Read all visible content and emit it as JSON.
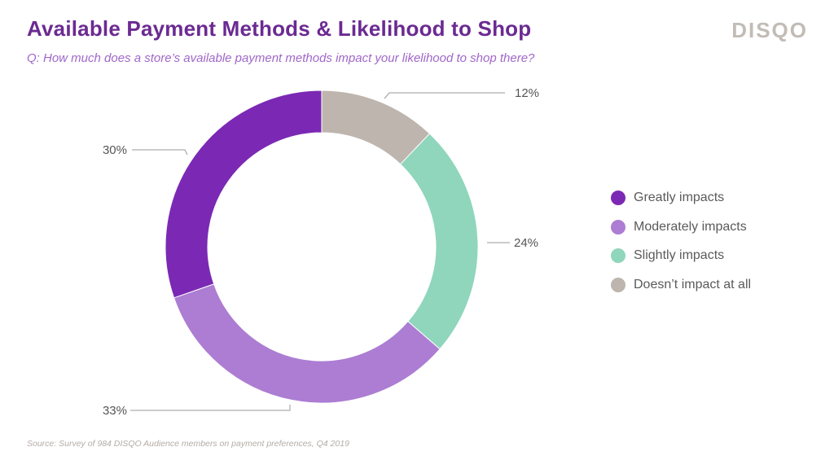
{
  "header": {
    "title": "Available Payment Methods & Likelihood to Shop",
    "subtitle": "Q: How much does a store’s available payment methods impact your likelihood to shop there?",
    "logo": "DISQO"
  },
  "footer": {
    "source": "Source: Survey of 984 DISQO Audience members on payment preferences, Q4 2019"
  },
  "colors": {
    "title": "#6b2a92",
    "subtitle": "#a067c9",
    "logo": "#c2bcb6"
  },
  "chart_data": {
    "type": "pie",
    "variant": "donut",
    "title": "Available Payment Methods & Likelihood to Shop",
    "legend_position": "right",
    "slices": [
      {
        "label": "Doesn’t impact at all",
        "value": 12,
        "value_label": "12%",
        "color": "#bdb5ae"
      },
      {
        "label": "Slightly impacts",
        "value": 24,
        "value_label": "24%",
        "color": "#8fd6bc"
      },
      {
        "label": "Moderately impacts",
        "value": 33,
        "value_label": "33%",
        "color": "#ac7dd3"
      },
      {
        "label": "Greatly impacts",
        "value": 30,
        "value_label": "30%",
        "color": "#7b29b4"
      }
    ],
    "legend_order": [
      "Greatly impacts",
      "Moderately impacts",
      "Slightly impacts",
      "Doesn’t impact at all"
    ]
  }
}
